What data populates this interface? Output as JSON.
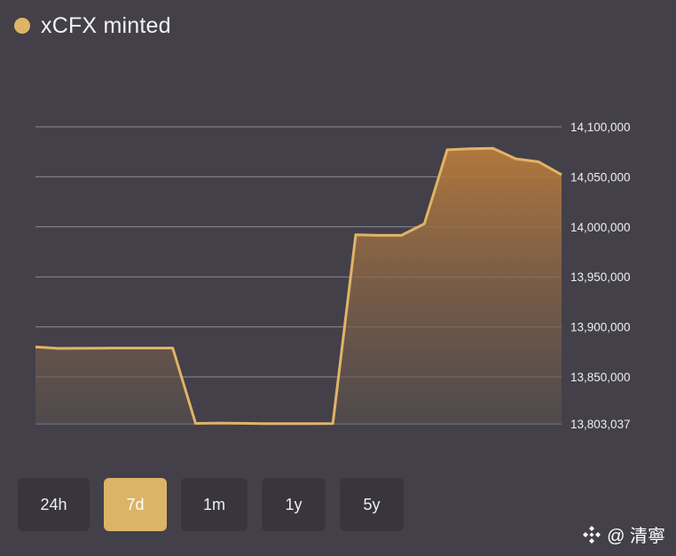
{
  "header": {
    "title": "xCFX minted"
  },
  "colors": {
    "accent": "#e0b467",
    "grid": "#8d8a93",
    "background": "#434049",
    "button_bg": "#38353d",
    "button_active_bg": "#dcb468"
  },
  "chart_data": {
    "type": "area",
    "title": "xCFX minted",
    "xlabel": "",
    "ylabel": "",
    "ylim": [
      13803037,
      14100000
    ],
    "grid": true,
    "y_ticks": [
      14100000,
      14050000,
      14000000,
      13950000,
      13900000,
      13850000,
      13803037
    ],
    "y_tick_labels": [
      "14,100,000",
      "14,050,000",
      "14,000,000",
      "13,950,000",
      "13,900,000",
      "13,850,000",
      "13,803,037"
    ],
    "x_index": [
      0,
      1,
      2,
      3,
      4,
      5,
      6,
      7,
      8,
      9,
      10,
      11,
      12,
      13,
      14,
      15,
      16,
      17,
      18,
      19,
      20,
      21,
      22,
      23
    ],
    "series": [
      {
        "values": [
          13880000,
          13878500,
          13878600,
          13878700,
          13878800,
          13878800,
          13878800,
          13803500,
          13803800,
          13803600,
          13803300,
          13803200,
          13803300,
          13803400,
          13992000,
          13991500,
          13991500,
          14003000,
          14077000,
          14078000,
          14078500,
          14068000,
          14065000,
          14052000
        ]
      }
    ]
  },
  "range_buttons": [
    {
      "label": "24h",
      "active": false
    },
    {
      "label": "7d",
      "active": true
    },
    {
      "label": "1m",
      "active": false
    },
    {
      "label": "1y",
      "active": false
    },
    {
      "label": "5y",
      "active": false
    }
  ],
  "watermark": {
    "text": "@ 清寧",
    "icon": "binance-logo-icon"
  }
}
